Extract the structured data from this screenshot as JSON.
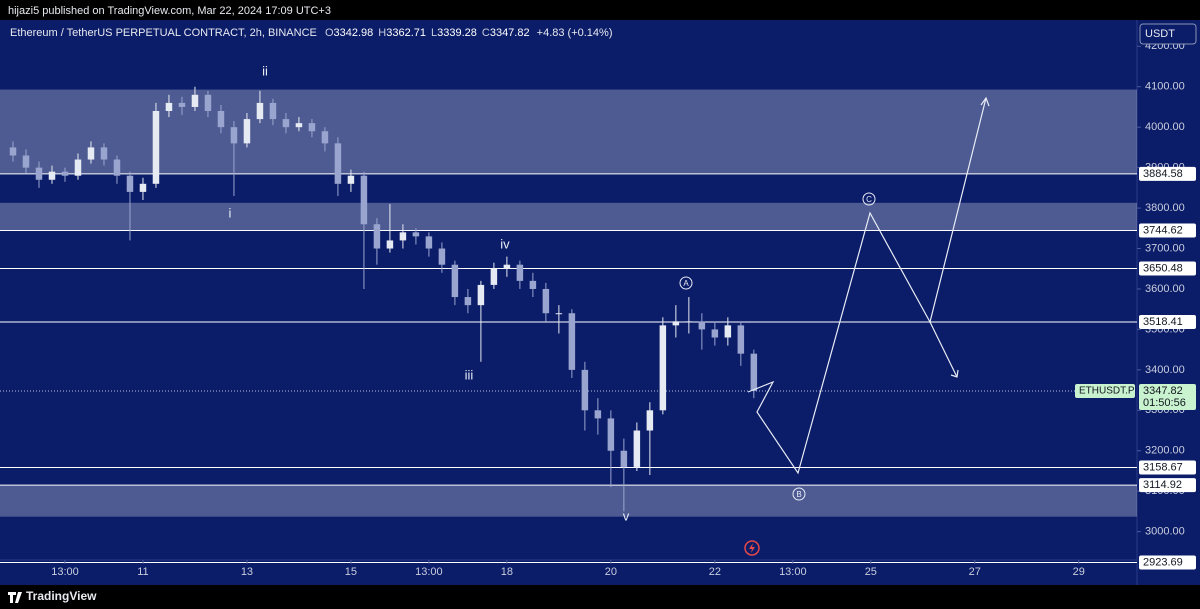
{
  "header": {
    "publisher": "hijazi5 published on TradingView.com, Mar 22, 2024 17:09 UTC+3",
    "brand": "TradingView"
  },
  "chart_data": {
    "type": "candlestick",
    "title": "Ethereum / TetherUS PERPETUAL CONTRACT, 2h, BINANCE",
    "ohlc_legend": [
      {
        "key": "O",
        "value": "3342.98"
      },
      {
        "key": "H",
        "value": "3362.71"
      },
      {
        "key": "L",
        "value": "3339.28"
      },
      {
        "key": "C",
        "value": "3347.82"
      }
    ],
    "change": "+4.83 (+0.14%)",
    "currency": "USDT",
    "x": [
      8.5,
      8.75,
      9,
      9.25,
      9.5,
      9.75,
      10,
      10.25,
      10.5,
      10.75,
      11,
      11.25,
      11.5,
      11.75,
      12,
      12.25,
      12.5,
      12.75,
      13,
      13.25,
      13.5,
      13.75,
      14,
      14.25,
      14.5,
      14.75,
      15,
      15.25,
      15.5,
      15.75,
      16,
      16.25,
      16.5,
      16.75,
      17,
      17.25,
      17.5,
      17.75,
      18,
      18.25,
      18.5,
      18.75,
      19,
      19.25,
      19.5,
      19.75,
      20,
      20.25,
      20.5,
      20.75,
      21,
      21.25,
      21.5,
      21.75,
      22,
      22.25,
      22.5,
      22.75
    ],
    "open": [
      3950,
      3930,
      3900,
      3870,
      3890,
      3880,
      3920,
      3950,
      3920,
      3880,
      3840,
      3860,
      4040,
      4060,
      4050,
      4080,
      4040,
      4000,
      3960,
      4020,
      4060,
      4020,
      4000,
      4010,
      3990,
      3960,
      3860,
      3880,
      3760,
      3700,
      3720,
      3740,
      3730,
      3700,
      3660,
      3580,
      3560,
      3610,
      3650,
      3660,
      3620,
      3600,
      3540,
      3540,
      3400,
      3300,
      3280,
      3200,
      3160,
      3250,
      3300,
      3510,
      3520,
      3520,
      3500,
      3480,
      3510,
      3440
    ],
    "high": [
      3965,
      3945,
      3915,
      3905,
      3900,
      3935,
      3965,
      3960,
      3930,
      3890,
      3875,
      4060,
      4080,
      4075,
      4100,
      4090,
      4055,
      4015,
      4035,
      4090,
      4070,
      4035,
      4025,
      4020,
      4000,
      3975,
      3895,
      3890,
      3775,
      3810,
      3760,
      3750,
      3740,
      3715,
      3670,
      3600,
      3620,
      3665,
      3680,
      3670,
      3640,
      3615,
      3560,
      3550,
      3420,
      3330,
      3300,
      3230,
      3270,
      3320,
      3530,
      3560,
      3580,
      3540,
      3520,
      3530,
      3520,
      3450
    ],
    "low": [
      3915,
      3885,
      3850,
      3860,
      3865,
      3870,
      3910,
      3905,
      3860,
      3720,
      3820,
      3850,
      4025,
      4030,
      4040,
      4025,
      3985,
      3830,
      3950,
      4010,
      4005,
      3985,
      3990,
      3975,
      3940,
      3830,
      3840,
      3600,
      3660,
      3690,
      3700,
      3710,
      3680,
      3640,
      3560,
      3540,
      3420,
      3600,
      3630,
      3600,
      3580,
      3520,
      3490,
      3380,
      3250,
      3240,
      3110,
      3050,
      3150,
      3140,
      3290,
      3480,
      3490,
      3450,
      3460,
      3460,
      3410,
      3330
    ],
    "close": [
      3930,
      3900,
      3870,
      3890,
      3880,
      3920,
      3950,
      3920,
      3880,
      3840,
      3860,
      4040,
      4060,
      4050,
      4080,
      4040,
      4000,
      3960,
      4020,
      4060,
      4020,
      4000,
      4010,
      3990,
      3960,
      3860,
      3880,
      3760,
      3700,
      3720,
      3740,
      3730,
      3700,
      3660,
      3580,
      3560,
      3610,
      3650,
      3660,
      3620,
      3600,
      3540,
      3540,
      3400,
      3300,
      3280,
      3200,
      3160,
      3250,
      3300,
      3510,
      3520,
      3520,
      3500,
      3480,
      3510,
      3440,
      3347.82
    ],
    "up_color": "#e6eaf2",
    "down_color": "#9aa5cf",
    "xlim": [
      8.25,
      30.12
    ],
    "xticks": [
      {
        "value": 9.5,
        "label": "13:00"
      },
      11,
      13,
      15,
      {
        "value": 16.5,
        "label": "13:00"
      },
      18,
      20,
      22,
      {
        "value": 23.5,
        "label": "13:00"
      },
      25,
      27,
      29
    ],
    "ylim": [
      2920,
      4265
    ],
    "yticks": [
      {
        "value": 4200,
        "label": "4200.00"
      },
      {
        "value": 4100,
        "label": "4100.00"
      },
      {
        "value": 4000,
        "label": "4000.00"
      },
      {
        "value": 3900,
        "label": "3900.00"
      },
      {
        "value": 3800,
        "label": "3800.00"
      },
      {
        "value": 3700,
        "label": "3700.00"
      },
      {
        "value": 3600,
        "label": "3600.00"
      },
      {
        "value": 3500,
        "label": "3500.00"
      },
      {
        "value": 3400,
        "label": "3400.00"
      },
      {
        "value": 3300,
        "label": "3300.00"
      },
      {
        "value": 3200,
        "label": "3200.00"
      },
      {
        "value": 3100,
        "label": "3100.00"
      },
      {
        "value": 3000,
        "label": "3000.00"
      }
    ],
    "levels": [
      3884.58,
      3744.62,
      3650.48,
      3518.41,
      3158.67,
      3114.92,
      2923.69
    ],
    "level_color": "#ffffff",
    "zones": [
      [
        3885,
        4093
      ],
      [
        3744,
        3813
      ],
      [
        3037,
        3114
      ]
    ],
    "zone_color": "rgba(255,255,255,0.28)",
    "last_price": {
      "symbol": "ETHUSDT.P",
      "value": 3347.82,
      "countdown": "01:50:56"
    },
    "wave_labels": [
      "ii",
      "i",
      "iii",
      "iv",
      "v",
      "A",
      "B",
      "C"
    ]
  }
}
